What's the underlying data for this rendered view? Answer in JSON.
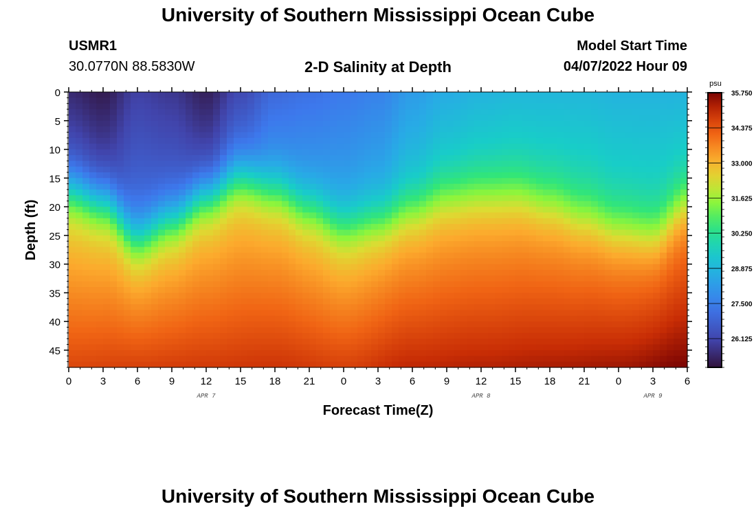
{
  "header": {
    "title": "University of Southern Mississippi Ocean Cube",
    "station": "USMR1",
    "coords": "30.0770N  88.5830W",
    "plot_title": "2-D Salinity at Depth",
    "model_start_label": "Model Start Time",
    "model_start_value": "04/07/2022 Hour 09"
  },
  "footer": {
    "title": "University of Southern Mississippi Ocean Cube"
  },
  "chart_data": {
    "type": "heatmap",
    "title": "2-D Salinity at Depth",
    "xlabel": "Forecast Time(Z)",
    "ylabel": "Depth (ft)",
    "x_tick_labels": [
      "0",
      "3",
      "6",
      "9",
      "12",
      "15",
      "18",
      "21",
      "0",
      "3",
      "6",
      "9",
      "12",
      "15",
      "18",
      "21",
      "0",
      "3",
      "6"
    ],
    "x_range": [
      0,
      54
    ],
    "day_labels": [
      {
        "label": "APR 7",
        "x": 12
      },
      {
        "label": "APR 8",
        "x": 36
      },
      {
        "label": "APR 9",
        "x": 51
      }
    ],
    "y_tick_labels": [
      "0",
      "5",
      "10",
      "15",
      "20",
      "25",
      "30",
      "35",
      "40",
      "45"
    ],
    "y_range": [
      0,
      48
    ],
    "colorbar": {
      "unit": "psu",
      "min": 25,
      "max": 35.75,
      "labels": [
        "35.750",
        "34.375",
        "33.000",
        "31.625",
        "30.250",
        "28.875",
        "27.500",
        "26.125"
      ],
      "label_values": [
        35.75,
        34.375,
        33.0,
        31.625,
        30.25,
        28.875,
        27.5,
        26.125
      ]
    },
    "halocline_depth_ft": [
      {
        "x": 0,
        "depth": 17
      },
      {
        "x": 3,
        "depth": 19
      },
      {
        "x": 6,
        "depth": 25
      },
      {
        "x": 9,
        "depth": 22
      },
      {
        "x": 12,
        "depth": 18
      },
      {
        "x": 15,
        "depth": 15
      },
      {
        "x": 18,
        "depth": 17
      },
      {
        "x": 21,
        "depth": 20
      },
      {
        "x": 24,
        "depth": 23
      },
      {
        "x": 27,
        "depth": 22
      },
      {
        "x": 30,
        "depth": 20
      },
      {
        "x": 33,
        "depth": 18
      },
      {
        "x": 36,
        "depth": 17.5
      },
      {
        "x": 39,
        "depth": 17.5
      },
      {
        "x": 42,
        "depth": 19
      },
      {
        "x": 45,
        "depth": 21
      },
      {
        "x": 48,
        "depth": 23
      },
      {
        "x": 51,
        "depth": 24
      },
      {
        "x": 54,
        "depth": 19
      }
    ],
    "surface_salinity_psu": [
      {
        "x": 0,
        "value": 25.5
      },
      {
        "x": 3,
        "value": 25.2
      },
      {
        "x": 6,
        "value": 26.0
      },
      {
        "x": 9,
        "value": 25.8
      },
      {
        "x": 12,
        "value": 25.3
      },
      {
        "x": 15,
        "value": 26.2
      },
      {
        "x": 18,
        "value": 27.0
      },
      {
        "x": 21,
        "value": 27.2
      },
      {
        "x": 24,
        "value": 27.4
      },
      {
        "x": 27,
        "value": 27.6
      },
      {
        "x": 30,
        "value": 28.2
      },
      {
        "x": 33,
        "value": 28.6
      },
      {
        "x": 36,
        "value": 28.8
      },
      {
        "x": 39,
        "value": 28.9
      },
      {
        "x": 42,
        "value": 28.9
      },
      {
        "x": 45,
        "value": 28.9
      },
      {
        "x": 48,
        "value": 28.8
      },
      {
        "x": 51,
        "value": 28.8
      },
      {
        "x": 54,
        "value": 28.8
      }
    ],
    "bottom_salinity_psu": [
      {
        "x": 0,
        "value": 34.6
      },
      {
        "x": 6,
        "value": 34.7
      },
      {
        "x": 12,
        "value": 34.8
      },
      {
        "x": 18,
        "value": 34.9
      },
      {
        "x": 24,
        "value": 34.7
      },
      {
        "x": 30,
        "value": 35.1
      },
      {
        "x": 36,
        "value": 35.2
      },
      {
        "x": 42,
        "value": 35.3
      },
      {
        "x": 48,
        "value": 35.4
      },
      {
        "x": 54,
        "value": 35.75
      }
    ]
  }
}
